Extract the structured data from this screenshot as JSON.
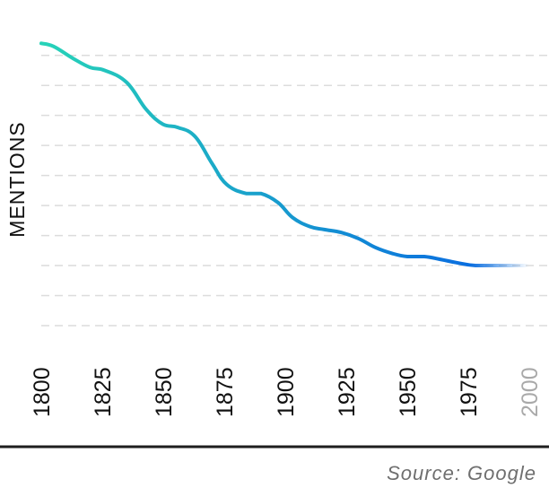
{
  "chart_data": {
    "type": "line",
    "ylabel": "MENTIONS",
    "xlabel": "",
    "x_ticks": [
      "1800",
      "1825",
      "1850",
      "1875",
      "1900",
      "1925",
      "1950",
      "1975",
      "2000"
    ],
    "faded_ticks": [
      "2000"
    ],
    "grid": "horizontal dashed",
    "y_gridlines": [
      0,
      1,
      2,
      3,
      4,
      5,
      6,
      7,
      8,
      9
    ],
    "ylim": [
      0,
      9.5
    ],
    "xlim": [
      1800,
      2000
    ],
    "series": [
      {
        "x": [
          1800,
          1805,
          1813,
          1820,
          1826,
          1835,
          1843,
          1850,
          1856,
          1863,
          1870,
          1876,
          1884,
          1890,
          1897,
          1903,
          1910,
          1916,
          1923,
          1930,
          1937,
          1944,
          1950,
          1957,
          1964,
          1970,
          1978,
          1990,
          2000
        ],
        "values": [
          9.4,
          9.3,
          8.9,
          8.6,
          8.5,
          8.1,
          7.2,
          6.7,
          6.6,
          6.3,
          5.4,
          4.7,
          4.4,
          4.4,
          4.1,
          3.6,
          3.3,
          3.2,
          3.1,
          2.9,
          2.6,
          2.4,
          2.3,
          2.3,
          2.2,
          2.1,
          2.0,
          2.0,
          2.0
        ],
        "color_start": "#27d3b8",
        "color_end": "#0a6ee0"
      }
    ]
  },
  "source_text": "Source: Google"
}
